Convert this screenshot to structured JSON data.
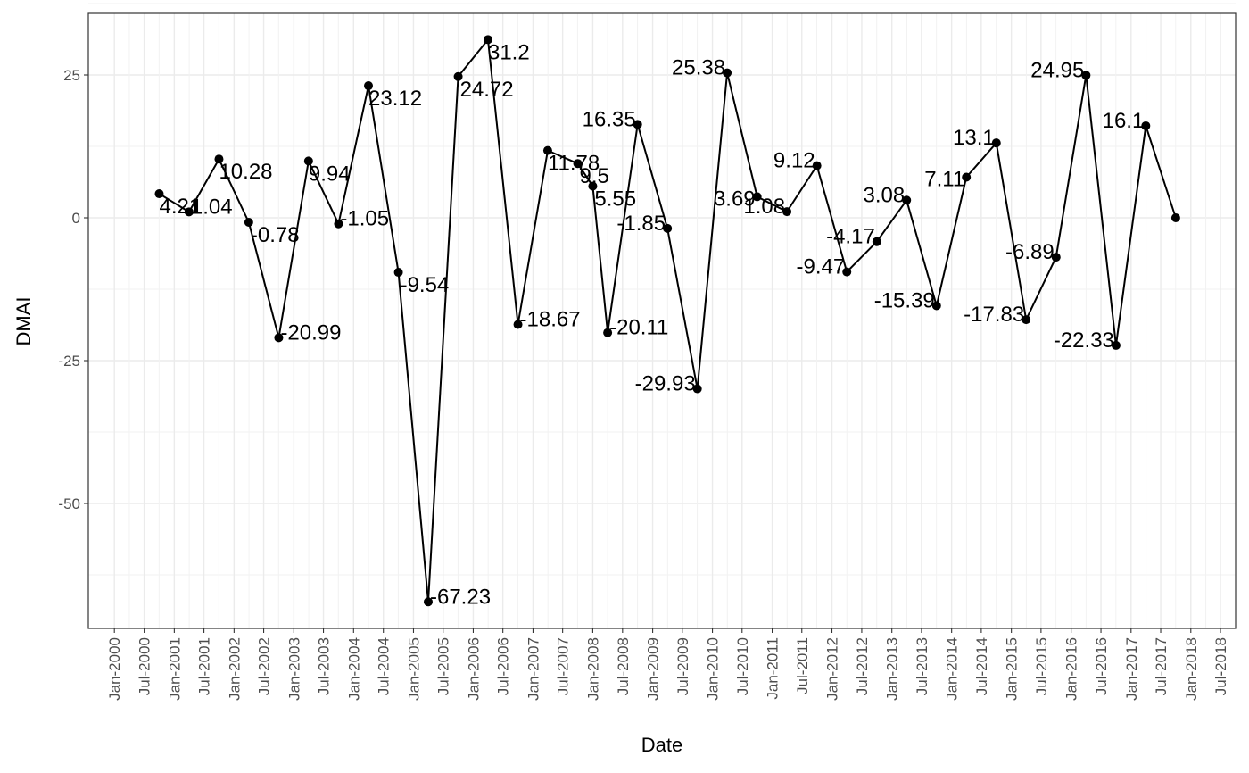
{
  "chart_data": {
    "type": "line",
    "title": "",
    "xlabel": "Date",
    "ylabel": "DMAI",
    "ylim": [
      -72,
      36
    ],
    "y_ticks": [
      25,
      0,
      -25,
      -50
    ],
    "y_tick_labels": [
      "25",
      "0",
      "-25",
      "-50"
    ],
    "x_tick_labels": [
      "Jan-2000",
      "Jul-2000",
      "Jan-2001",
      "Jul-2001",
      "Jan-2002",
      "Jul-2002",
      "Jan-2003",
      "Jul-2003",
      "Jan-2004",
      "Jul-2004",
      "Jan-2005",
      "Jul-2005",
      "Jan-2006",
      "Jul-2006",
      "Jan-2007",
      "Jul-2007",
      "Jan-2008",
      "Jul-2008",
      "Jan-2009",
      "Jul-2009",
      "Jan-2010",
      "Jul-2010",
      "Jan-2011",
      "Jul-2011",
      "Jan-2012",
      "Jul-2012",
      "Jan-2013",
      "Jul-2013",
      "Jan-2014",
      "Jul-2014",
      "Jan-2015",
      "Jul-2015",
      "Jan-2016",
      "Jul-2016",
      "Jan-2017",
      "Jul-2017",
      "Jan-2018",
      "Jul-2018"
    ],
    "grid": true,
    "series": [
      {
        "x": [
          "2000-10-01",
          "2001-04-01",
          "2001-10-01",
          "2002-04-01",
          "2002-10-01",
          "2003-04-01",
          "2003-10-01",
          "2004-04-01",
          "2004-10-01",
          "2005-04-01",
          "2005-10-01",
          "2006-04-01",
          "2006-10-01",
          "2007-04-01",
          "2007-10-01",
          "2008-01-01",
          "2008-04-01",
          "2008-10-01",
          "2009-04-01",
          "2009-10-01",
          "2010-04-01",
          "2010-10-01",
          "2011-04-01",
          "2011-10-01",
          "2012-04-01",
          "2012-10-01",
          "2013-04-01",
          "2013-10-01",
          "2014-04-01",
          "2014-10-01",
          "2015-04-01",
          "2015-10-01",
          "2016-04-01",
          "2016-10-01",
          "2017-04-01",
          "2017-10-01"
        ],
        "y": [
          4.21,
          1.04,
          10.28,
          -0.78,
          -20.99,
          9.94,
          -1.05,
          23.12,
          -9.54,
          -67.23,
          24.72,
          31.2,
          -18.67,
          11.78,
          9.5,
          5.55,
          -20.11,
          16.35,
          -1.85,
          -29.93,
          25.38,
          3.69,
          1.08,
          9.12,
          -9.47,
          -4.17,
          3.08,
          -15.39,
          7.11,
          13.1,
          -17.83,
          -6.89,
          24.95,
          -22.33,
          16.1,
          0
        ],
        "labels": [
          "4.21",
          "1.04",
          "10.28",
          "-0.78",
          "-20.99",
          "9.94",
          "-1.05",
          "23.12",
          "-9.54",
          "-67.23",
          "24.72",
          "31.2",
          "-18.67",
          "11.78",
          "9.5",
          "5.55",
          "-20.11",
          "16.35",
          "-1.85",
          "-29.93",
          "25.38",
          "3.69",
          "1.08",
          "9.12",
          "-9.47",
          "-4.17",
          "3.08",
          "-15.39",
          "7.11",
          "13.1",
          "-17.83",
          "-6.89",
          "24.95",
          "-22.33",
          "16.1",
          ""
        ]
      }
    ]
  }
}
